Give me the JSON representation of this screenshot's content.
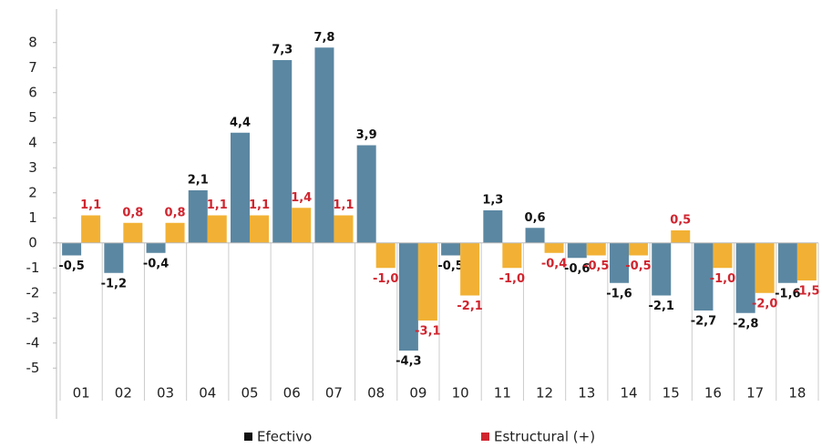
{
  "chart_data": {
    "type": "bar",
    "categories": [
      "01",
      "02",
      "03",
      "04",
      "05",
      "06",
      "07",
      "08",
      "09",
      "10",
      "11",
      "12",
      "13",
      "14",
      "15",
      "16",
      "17",
      "18"
    ],
    "series": [
      {
        "name": "Efectivo",
        "color": "#5b87a2",
        "legend_color": "#111111",
        "label_color": "#111111",
        "values": [
          -0.5,
          -1.2,
          -0.4,
          2.1,
          4.4,
          7.3,
          7.8,
          3.9,
          -4.3,
          -0.5,
          1.3,
          0.6,
          -0.6,
          -1.6,
          -2.1,
          -2.7,
          -2.8,
          -1.6
        ],
        "value_labels": [
          "-0,5",
          "-1,2",
          "-0,4",
          "2,1",
          "4,4",
          "7,3",
          "7,8",
          "3,9",
          "-4,3",
          "-0,5",
          "1,3",
          "0,6",
          "-0,6",
          "-1,6",
          "-2,1",
          "-2,7",
          "-2,8",
          "-1,6"
        ]
      },
      {
        "name": "Estructural (+)",
        "color": "#f2b134",
        "legend_color": "#d0252f",
        "label_color": "#d0252f",
        "values": [
          1.1,
          0.8,
          0.8,
          1.1,
          1.1,
          1.4,
          1.1,
          -1.0,
          -3.1,
          -2.1,
          -1.0,
          -0.4,
          -0.5,
          -0.5,
          0.5,
          -1.0,
          -2.0,
          -1.5
        ],
        "value_labels": [
          "1,1",
          "0,8",
          "0,8",
          "1,1",
          "1,1",
          "1,4",
          "1,1",
          "-1,0",
          "-3,1",
          "-2,1",
          "-1,0",
          "-0,4",
          "-0,5",
          "-0,5",
          "0,5",
          "-1,0",
          "-2,0",
          "-1,5"
        ]
      }
    ],
    "ylim": [
      -5.5,
      8.5
    ],
    "yticks": [
      -5,
      -4,
      -3,
      -2,
      -1,
      0,
      1,
      2,
      3,
      4,
      5,
      6,
      7,
      8
    ],
    "grid": false
  }
}
